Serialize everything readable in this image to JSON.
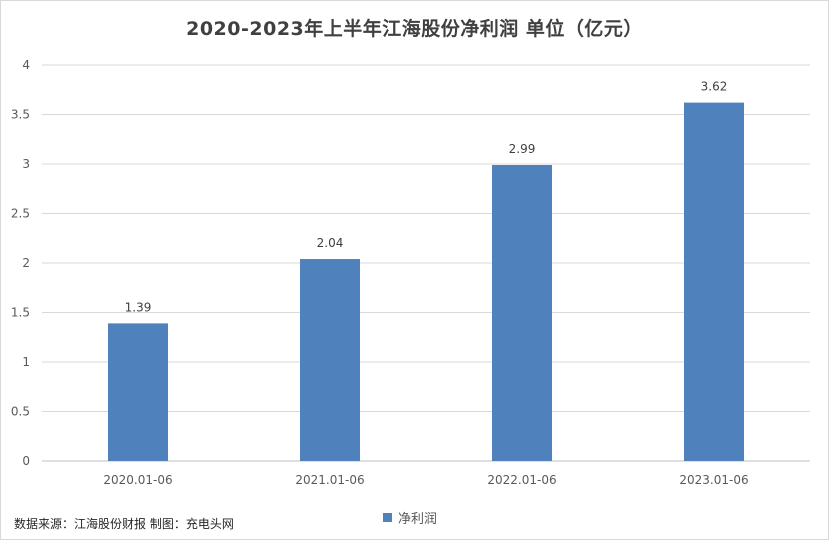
{
  "chart_data": {
    "type": "bar",
    "title": "2020-2023年上半年江海股份净利润 单位（亿元）",
    "categories": [
      "2020.01-06",
      "2021.01-06",
      "2022.01-06",
      "2023.01-06"
    ],
    "series": [
      {
        "name": "净利润",
        "values": [
          1.39,
          2.04,
          2.99,
          3.62
        ]
      }
    ],
    "data_labels": [
      "1.39",
      "2.04",
      "2.99",
      "3.62"
    ],
    "y_ticks": [
      "0",
      "0.5",
      "1",
      "1.5",
      "2",
      "2.5",
      "3",
      "3.5",
      "4"
    ],
    "ylim": [
      0,
      4
    ],
    "grid": true,
    "legend_position": "bottom",
    "bar_color": "#4f81bd"
  },
  "footer": {
    "source": "数据来源：江海股份财报  制图：充电头网"
  }
}
